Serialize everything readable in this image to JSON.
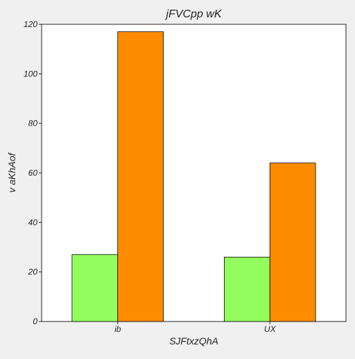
{
  "chart_data": {
    "type": "bar",
    "title": "jFVCpp wK",
    "xlabel": "SJFtxzQhA",
    "ylabel": "v aKhAof",
    "categories": [
      "ib",
      "UX"
    ],
    "series": [
      {
        "values": [
          27,
          26
        ],
        "color": "#94fd5e"
      },
      {
        "values": [
          117,
          64
        ],
        "color": "#ff8c00"
      }
    ],
    "ylim": [
      0,
      120
    ],
    "yticks": [
      0,
      20,
      40,
      60,
      80,
      100,
      120
    ],
    "grid": false,
    "legend": "none"
  },
  "colors": {
    "background": "#f0f0f0",
    "plot_background": "#ffffff",
    "axis": "#222222",
    "bar_edge": "#000000"
  }
}
